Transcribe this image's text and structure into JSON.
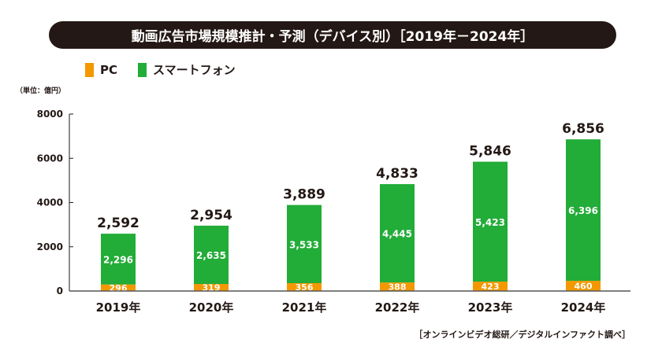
{
  "title": "動画広告市場規模推計・予測（デバイス別）［2019年－2024年］",
  "unit_label": "（単位：億円）",
  "source": "［オンラインビデオ総研／デジタルインファクト調べ］",
  "colors": {
    "PC": "#f39800",
    "スマートフォン": "#22ac38",
    "title_bg": "#231815"
  },
  "chart_data": {
    "type": "bar",
    "stacked": true,
    "title": "動画広告市場規模推計・予測（デバイス別）［2019年－2024年］",
    "categories": [
      "2019年",
      "2020年",
      "2021年",
      "2022年",
      "2023年",
      "2024年"
    ],
    "series": [
      {
        "name": "PC",
        "values": [
          296,
          319,
          356,
          388,
          423,
          460
        ]
      },
      {
        "name": "スマートフォン",
        "values": [
          2296,
          2635,
          3533,
          4445,
          5423,
          6396
        ]
      }
    ],
    "totals": [
      "2,592",
      "2,954",
      "3,889",
      "4,833",
      "5,846",
      "6,856"
    ],
    "ylim": [
      0,
      8000
    ],
    "yticks": [
      0,
      2000,
      4000,
      6000,
      8000
    ],
    "ylabel": "（単位：億円）",
    "legend_position": "top-left",
    "grid": false
  }
}
